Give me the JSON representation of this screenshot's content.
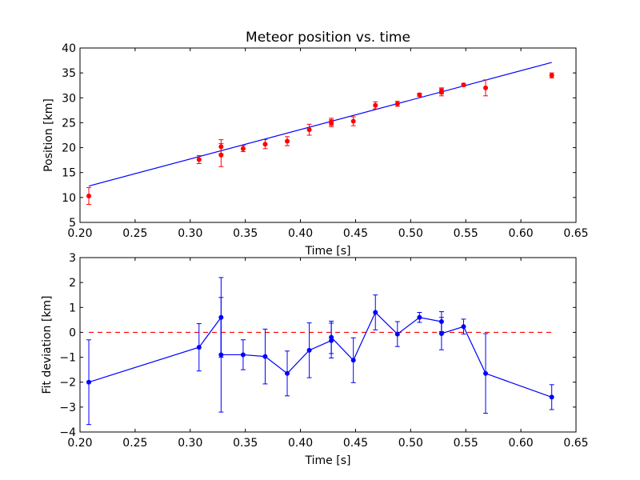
{
  "chart_data": [
    {
      "type": "scatter",
      "title": "Meteor position vs. time",
      "xlabel": "Time [s]",
      "ylabel": "Position [km]",
      "xlim": [
        0.2,
        0.65
      ],
      "ylim": [
        5,
        40
      ],
      "xticks": [
        "0.20",
        "0.25",
        "0.30",
        "0.35",
        "0.40",
        "0.45",
        "0.50",
        "0.55",
        "0.60",
        "0.65"
      ],
      "yticks": [
        "5",
        "10",
        "15",
        "20",
        "25",
        "30",
        "35",
        "40"
      ],
      "colors": {
        "points": "#ff0000",
        "fit": "#0000ff"
      },
      "series": [
        {
          "type": "scatter-errorbar",
          "points": [
            {
              "x": 0.208,
              "y": 10.3,
              "err": 1.7
            },
            {
              "x": 0.308,
              "y": 17.6,
              "err": 0.8
            },
            {
              "x": 0.328,
              "y": 20.2,
              "err": 1.4
            },
            {
              "x": 0.328,
              "y": 18.5,
              "err": 2.3
            },
            {
              "x": 0.348,
              "y": 19.8,
              "err": 0.6
            },
            {
              "x": 0.368,
              "y": 20.7,
              "err": 0.9
            },
            {
              "x": 0.388,
              "y": 21.3,
              "err": 0.9
            },
            {
              "x": 0.408,
              "y": 23.6,
              "err": 1.1
            },
            {
              "x": 0.428,
              "y": 24.9,
              "err": 0.7
            },
            {
              "x": 0.428,
              "y": 25.2,
              "err": 0.7
            },
            {
              "x": 0.448,
              "y": 25.3,
              "err": 0.9
            },
            {
              "x": 0.468,
              "y": 28.5,
              "err": 0.7
            },
            {
              "x": 0.488,
              "y": 28.8,
              "err": 0.5
            },
            {
              "x": 0.508,
              "y": 30.6,
              "err": 0.3
            },
            {
              "x": 0.528,
              "y": 31.4,
              "err": 0.6
            },
            {
              "x": 0.528,
              "y": 31.1,
              "err": 0.7
            },
            {
              "x": 0.548,
              "y": 32.6,
              "err": 0.3
            },
            {
              "x": 0.568,
              "y": 32.0,
              "err": 1.6
            },
            {
              "x": 0.628,
              "y": 34.5,
              "err": 0.5
            }
          ]
        },
        {
          "type": "line",
          "x": [
            0.208,
            0.628
          ],
          "values": [
            12.3,
            37.1
          ]
        }
      ]
    },
    {
      "type": "line",
      "xlabel": "Time [s]",
      "ylabel": "Fit deviation [km]",
      "xlim": [
        0.2,
        0.65
      ],
      "ylim": [
        -4,
        3
      ],
      "xticks": [
        "0.20",
        "0.25",
        "0.30",
        "0.35",
        "0.40",
        "0.45",
        "0.50",
        "0.55",
        "0.60",
        "0.65"
      ],
      "yticks": [
        "−4",
        "−3",
        "−2",
        "−1",
        "0",
        "1",
        "2",
        "3"
      ],
      "colors": {
        "line": "#0000ff",
        "zero": "#ff0000"
      },
      "reference_line": {
        "y": 0,
        "x": [
          0.208,
          0.628
        ],
        "style": "dashed"
      },
      "series": [
        {
          "type": "line-errorbar",
          "points": [
            {
              "x": 0.208,
              "y": -2.0,
              "err": 1.7
            },
            {
              "x": 0.308,
              "y": -0.6,
              "err": 0.95
            },
            {
              "x": 0.328,
              "y": 0.6,
              "err": 1.6
            },
            {
              "x": 0.328,
              "y": -0.9,
              "err": 2.3
            },
            {
              "x": 0.348,
              "y": -0.9,
              "err": 0.6
            },
            {
              "x": 0.368,
              "y": -0.97,
              "err": 1.1
            },
            {
              "x": 0.388,
              "y": -1.65,
              "err": 0.9
            },
            {
              "x": 0.408,
              "y": -0.72,
              "err": 1.1
            },
            {
              "x": 0.428,
              "y": -0.33,
              "err": 0.7
            },
            {
              "x": 0.428,
              "y": -0.2,
              "err": 0.65
            },
            {
              "x": 0.448,
              "y": -1.12,
              "err": 0.9
            },
            {
              "x": 0.468,
              "y": 0.8,
              "err": 0.7
            },
            {
              "x": 0.488,
              "y": -0.07,
              "err": 0.5
            },
            {
              "x": 0.508,
              "y": 0.6,
              "err": 0.2
            },
            {
              "x": 0.528,
              "y": 0.43,
              "err": 0.4
            },
            {
              "x": 0.528,
              "y": -0.05,
              "err": 0.65
            },
            {
              "x": 0.548,
              "y": 0.23,
              "err": 0.3
            },
            {
              "x": 0.568,
              "y": -1.65,
              "err": 1.6
            },
            {
              "x": 0.628,
              "y": -2.6,
              "err": 0.5
            }
          ]
        }
      ]
    }
  ]
}
